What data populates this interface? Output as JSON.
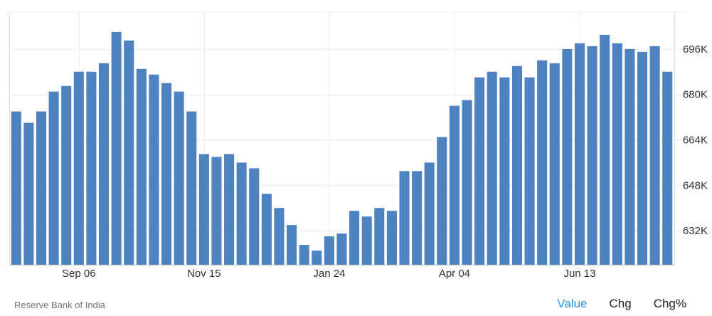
{
  "chart_data": {
    "type": "bar",
    "series": [
      {
        "values": [
          674,
          670,
          674,
          681,
          683,
          688,
          688,
          691,
          702,
          699,
          689,
          687,
          684,
          681,
          674,
          659,
          658,
          659,
          656,
          654,
          645,
          640,
          634,
          627,
          625,
          630,
          631,
          639,
          637,
          640,
          639,
          653,
          653,
          656,
          665,
          676,
          678,
          686,
          688,
          686,
          690,
          686,
          692,
          691,
          696,
          698,
          697,
          701,
          698,
          696,
          695,
          697,
          688
        ]
      }
    ],
    "x_tick_labels": [
      "Sep 06",
      "Nov 15",
      "Jan 24",
      "Apr 04",
      "Jun 13"
    ],
    "x_tick_indices": [
      5,
      15,
      25,
      35,
      45
    ],
    "y_ticks": [
      632,
      648,
      664,
      680,
      696
    ],
    "y_tick_labels": [
      "632K",
      "648K",
      "664K",
      "680K",
      "696K"
    ],
    "ylim": [
      620,
      709
    ],
    "grid": true,
    "bar_color": "#4f82c0"
  },
  "footer": {
    "source": "Reserve Bank of India",
    "tabs": [
      "Value",
      "Chg",
      "Chg%"
    ],
    "active_tab": "Value"
  }
}
